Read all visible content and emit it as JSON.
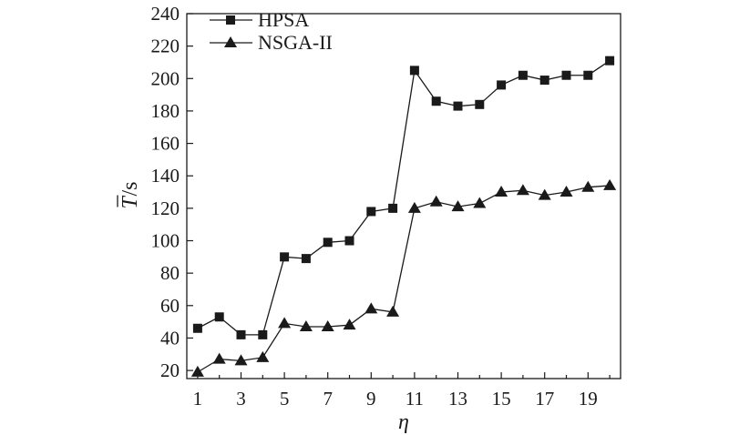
{
  "chart_data": {
    "type": "line",
    "xlabel": "η",
    "ylabel": {
      "symbol": "T",
      "unit": "/s"
    },
    "xlim": [
      0.5,
      20.5
    ],
    "ylim": [
      15,
      240
    ],
    "x_ticks": [
      1,
      3,
      5,
      7,
      9,
      11,
      13,
      15,
      17,
      19
    ],
    "y_ticks": [
      20,
      40,
      60,
      80,
      100,
      120,
      140,
      160,
      180,
      200,
      220,
      240
    ],
    "legend_position": "top-left",
    "grid": false,
    "x": [
      1,
      2,
      3,
      4,
      5,
      6,
      7,
      8,
      9,
      10,
      11,
      12,
      13,
      14,
      15,
      16,
      17,
      18,
      19,
      20
    ],
    "series": [
      {
        "name": "HPSA",
        "marker": "square",
        "values": [
          46,
          53,
          42,
          42,
          90,
          89,
          99,
          100,
          118,
          120,
          205,
          186,
          183,
          184,
          196,
          202,
          199,
          202,
          202,
          211
        ]
      },
      {
        "name": "NSGA-II",
        "marker": "triangle",
        "values": [
          19,
          27,
          26,
          28,
          49,
          47,
          47,
          48,
          58,
          56,
          120,
          124,
          121,
          123,
          130,
          131,
          128,
          130,
          133,
          134
        ]
      }
    ]
  }
}
